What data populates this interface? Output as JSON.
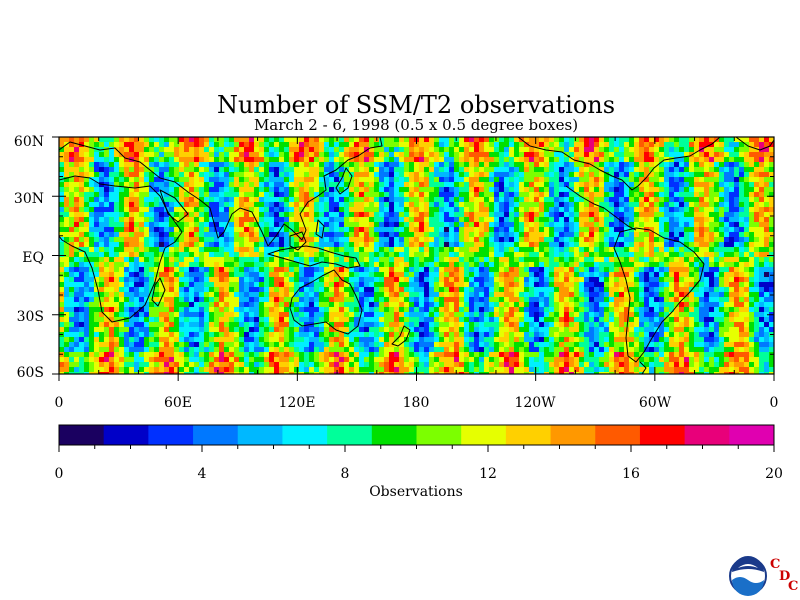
{
  "title": "Number of SSM/T2 observations",
  "subtitle": "March 2 - 6, 1998 (0.5 x 0.5 degree boxes)",
  "map": {
    "projection": "cylindrical equidistant",
    "lat_range": [
      -60,
      60
    ],
    "lon_range": [
      0,
      360
    ],
    "lat_labels": [
      "60N",
      "30N",
      "EQ",
      "30S",
      "60S"
    ],
    "lon_labels": [
      "0",
      "60E",
      "120E",
      "180",
      "120W",
      "60W",
      "0"
    ]
  },
  "colorbar": {
    "label": "Observations",
    "ticks": [
      "0",
      "4",
      "8",
      "12",
      "16",
      "20"
    ],
    "range": [
      0,
      20
    ],
    "colors": [
      "#1a0060",
      "#0000c8",
      "#0030ff",
      "#0078ff",
      "#00b8ff",
      "#00f0ff",
      "#00ff9a",
      "#00e000",
      "#7cff00",
      "#e6ff00",
      "#ffd000",
      "#ff9800",
      "#ff5a00",
      "#ff0000",
      "#e8007a",
      "#e000b0"
    ]
  },
  "logo": {
    "name": "NOAA",
    "letters": [
      "C",
      "D",
      "C"
    ]
  }
}
